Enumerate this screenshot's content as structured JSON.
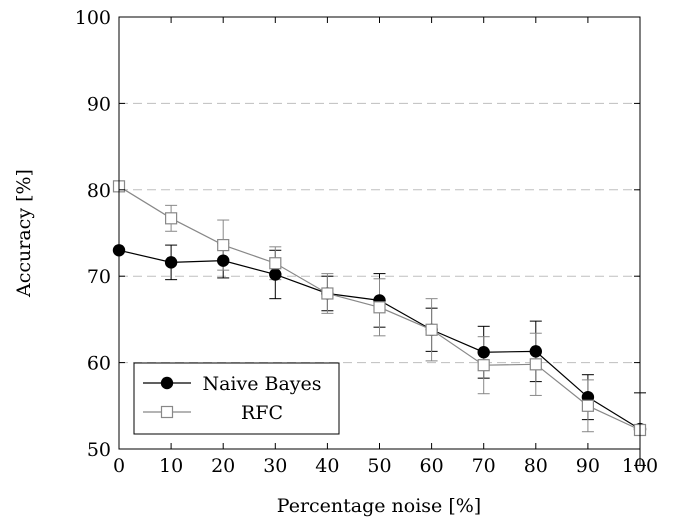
{
  "chart_data": {
    "type": "line",
    "title": "",
    "xlabel": "Percentage noise [%]",
    "ylabel": "Accuracy [%]",
    "xlim": [
      0,
      100
    ],
    "ylim": [
      50,
      100
    ],
    "xticks": [
      0,
      10,
      20,
      30,
      40,
      50,
      60,
      70,
      80,
      90,
      100
    ],
    "yticks": [
      50,
      60,
      70,
      80,
      90,
      100
    ],
    "grid": "horizontal dashed",
    "legend_position": "bottom-left",
    "x": [
      0,
      10,
      20,
      30,
      40,
      50,
      60,
      70,
      80,
      90,
      100
    ],
    "series": [
      {
        "name": "Naive Bayes",
        "marker": "filled-circle",
        "color": "#000000",
        "values": [
          73.0,
          71.6,
          71.8,
          70.2,
          68.0,
          67.2,
          63.8,
          61.2,
          61.3,
          56.0,
          52.3
        ],
        "error": [
          null,
          2.0,
          2.0,
          2.8,
          2.0,
          3.1,
          2.5,
          3.0,
          3.5,
          2.6,
          4.2
        ]
      },
      {
        "name": "RFC",
        "marker": "open-square",
        "color": "#888888",
        "values": [
          80.4,
          76.7,
          73.6,
          71.5,
          68.0,
          66.4,
          63.8,
          59.7,
          59.8,
          55.0,
          52.2
        ],
        "error": [
          null,
          1.5,
          2.9,
          1.9,
          2.3,
          3.3,
          3.6,
          3.3,
          3.6,
          3.0,
          null
        ]
      }
    ]
  }
}
